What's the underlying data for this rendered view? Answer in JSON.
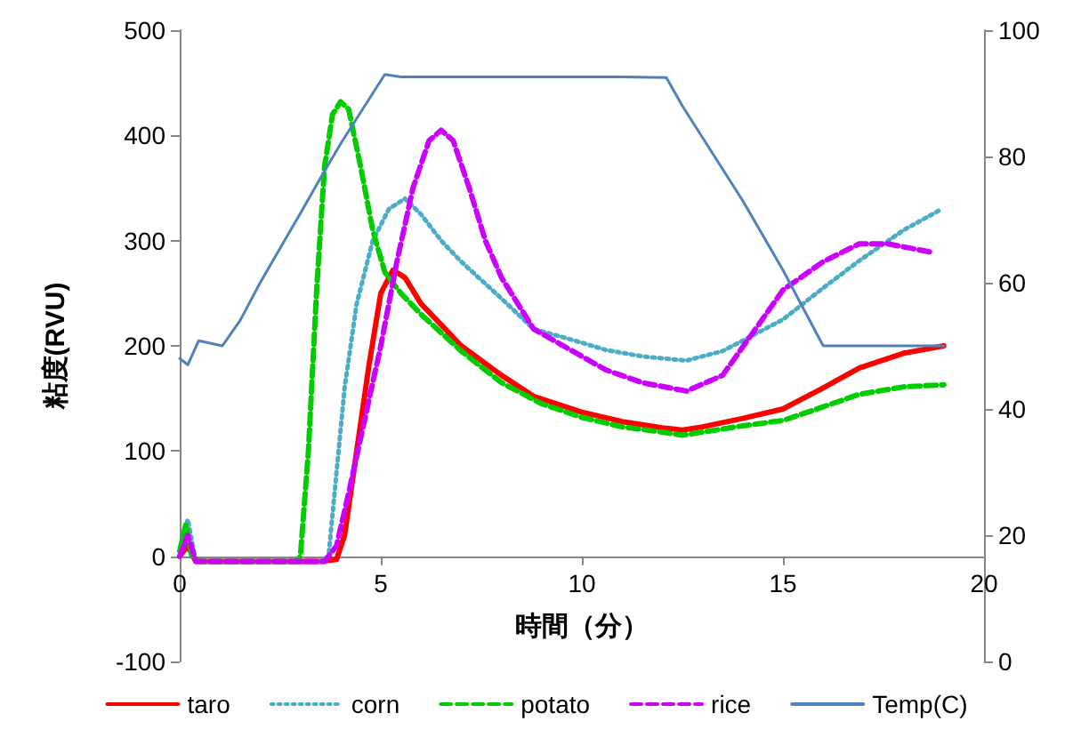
{
  "chart_data": {
    "type": "line",
    "xlabel": "時間（分）",
    "ylabel": "粘度(RVU)",
    "xlim": [
      0,
      20
    ],
    "xticks": [
      0,
      5,
      10,
      15,
      20
    ],
    "ylim": [
      -100,
      500
    ],
    "yticks": [
      -100,
      0,
      100,
      200,
      300,
      400,
      500
    ],
    "y2lim": [
      0,
      100
    ],
    "y2ticks": [
      0,
      20,
      40,
      60,
      80,
      100
    ],
    "grid": false,
    "legend": "bottom",
    "marker": "none",
    "series": [
      {
        "name": "taro",
        "color": "#ff0000",
        "line_style": "solid",
        "x": [
          0,
          0.2,
          0.4,
          1,
          2,
          3,
          3.5,
          3.9,
          4.1,
          4.4,
          4.7,
          5,
          5.3,
          5.6,
          6,
          7,
          8,
          8.8,
          10,
          11,
          12,
          12.5,
          13,
          14,
          15,
          16,
          16.9,
          18,
          19
        ],
        "values": [
          0,
          10,
          -5,
          -5,
          -5,
          -5,
          -5,
          -3,
          20,
          100,
          180,
          250,
          272,
          265,
          240,
          200,
          172,
          152,
          137,
          128,
          122,
          120,
          123,
          131,
          140,
          160,
          179,
          193,
          200
        ]
      },
      {
        "name": "corn",
        "color": "#4bacc6",
        "line_style": "dotted",
        "x": [
          0,
          0.2,
          0.4,
          1,
          2,
          3,
          3.5,
          3.7,
          3.9,
          4.1,
          4.4,
          4.8,
          5.2,
          5.6,
          6,
          6.5,
          7,
          8,
          8.8,
          10,
          10.6,
          11.5,
          12.6,
          13.5,
          15,
          16,
          16.9,
          18,
          18.9
        ],
        "values": [
          5,
          35,
          -5,
          -5,
          -5,
          -5,
          -5,
          0,
          80,
          160,
          240,
          300,
          330,
          340,
          325,
          300,
          280,
          245,
          216,
          203,
          196,
          190,
          186,
          195,
          225,
          255,
          281,
          310,
          329
        ]
      },
      {
        "name": "potato",
        "color": "#00cc00",
        "line_style": "dashed",
        "x": [
          0,
          0.15,
          0.3,
          0.5,
          1,
          2,
          2.9,
          3,
          3.2,
          3.4,
          3.6,
          3.8,
          4,
          4.2,
          4.5,
          4.8,
          5.1,
          5.5,
          6,
          7,
          8,
          9,
          10,
          11,
          12,
          12.5,
          13,
          14,
          15,
          16,
          16.9,
          18,
          19
        ],
        "values": [
          5,
          30,
          0,
          -5,
          -5,
          -5,
          -5,
          0,
          100,
          250,
          370,
          420,
          432,
          425,
          370,
          310,
          270,
          250,
          230,
          195,
          165,
          145,
          132,
          123,
          118,
          115,
          118,
          124,
          129,
          142,
          154,
          161,
          163
        ]
      },
      {
        "name": "rice",
        "color": "#cc00ff",
        "line_style": "dashed",
        "x": [
          0,
          0.2,
          0.4,
          1,
          2,
          3,
          3.6,
          3.9,
          4.2,
          4.6,
          5,
          5.4,
          5.8,
          6.2,
          6.5,
          6.8,
          7.2,
          7.6,
          8,
          8.8,
          10.6,
          11.5,
          12.6,
          13.5,
          14.3,
          15,
          16,
          16.9,
          17.6,
          18.7
        ],
        "values": [
          0,
          20,
          -5,
          -5,
          -5,
          -5,
          -5,
          10,
          60,
          130,
          200,
          280,
          350,
          395,
          405,
          395,
          350,
          300,
          265,
          216,
          177,
          165,
          157,
          172,
          215,
          253,
          280,
          297,
          297,
          289
        ]
      },
      {
        "name": "Temp(C)",
        "color": "#4f81bd",
        "line_style": "solid",
        "axis": "y2",
        "x": [
          0,
          0.2,
          0.47,
          1.06,
          1.5,
          2,
          3,
          3.5,
          4,
          4.5,
          5.1,
          5.5,
          7,
          9,
          11,
          12.1,
          12.5,
          13,
          14,
          15,
          16,
          17,
          18,
          19
        ],
        "values": [
          48,
          47,
          50.8,
          50,
          54,
          60,
          71,
          76.6,
          82,
          87,
          93,
          92.6,
          92.6,
          92.6,
          92.6,
          92.5,
          88,
          83,
          73,
          62,
          50,
          50,
          50,
          50
        ]
      }
    ]
  }
}
